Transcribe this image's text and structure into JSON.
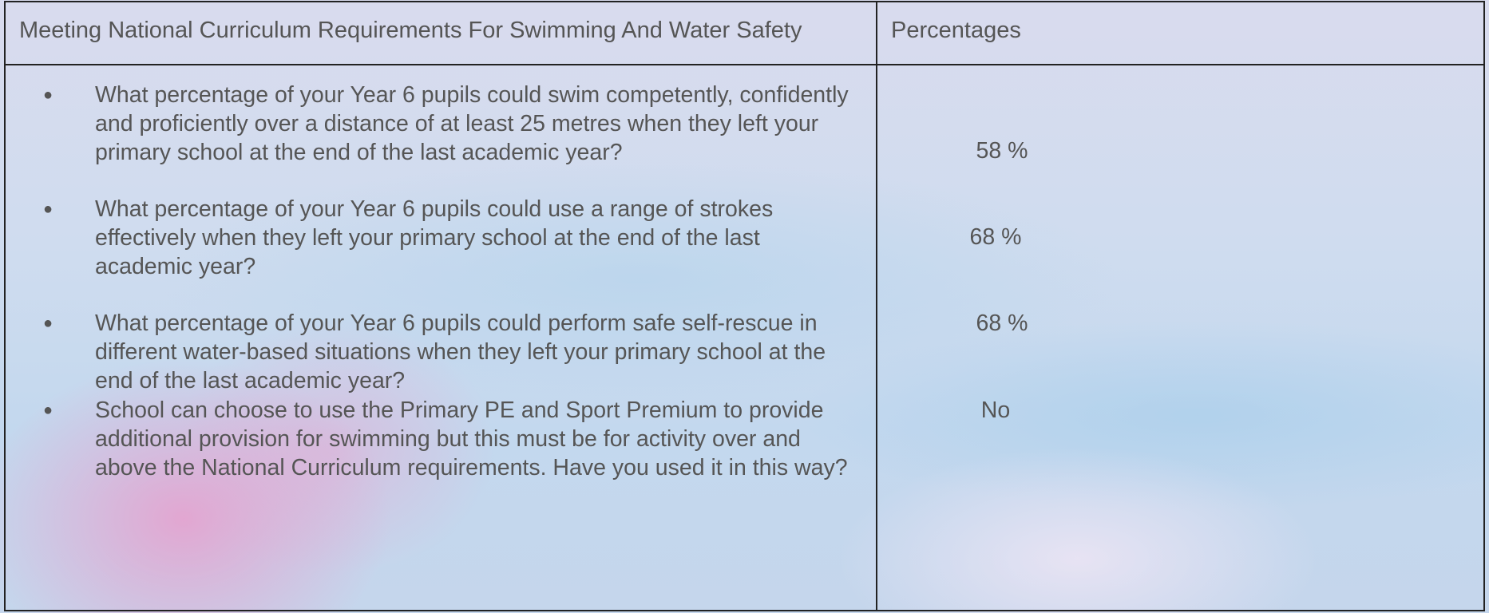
{
  "header": {
    "title": "Meeting National Curriculum Requirements For Swimming And Water Safety",
    "col2": "Percentages"
  },
  "rows": [
    {
      "question": "What percentage of your Year 6 pupils could swim competently, confidently and proficiently over a distance of at least 25 metres when they left your primary school at the end of the last academic year?",
      "answer": "58 %"
    },
    {
      "question": "What percentage of your Year 6 pupils could use a range of strokes effectively when they left your primary school at the end of the last academic year?",
      "answer": "68 %"
    },
    {
      "question": "What percentage of your Year 6 pupils could perform safe self-rescue in different water-based situations when they left your primary school at the end of the last academic year?",
      "answer": "68 %"
    },
    {
      "question": "School can choose to use the Primary PE and Sport Premium to provide additional provision for swimming but this must be for activity over and above the National Curriculum requirements. Have you used it in this way?",
      "answer": "No"
    }
  ]
}
